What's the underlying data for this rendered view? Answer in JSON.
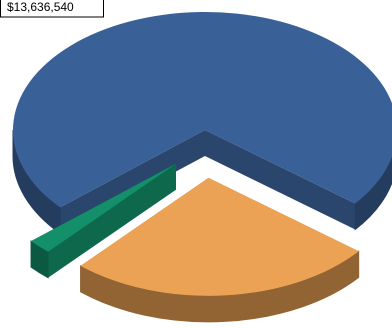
{
  "chart_data": {
    "type": "pie",
    "values": [
      13636540,
      4900000,
      380000
    ],
    "value_labels": [
      "$13,636,540",
      null,
      null
    ],
    "colors": [
      "#3a6197",
      "#eba254",
      "#13906a"
    ]
  }
}
